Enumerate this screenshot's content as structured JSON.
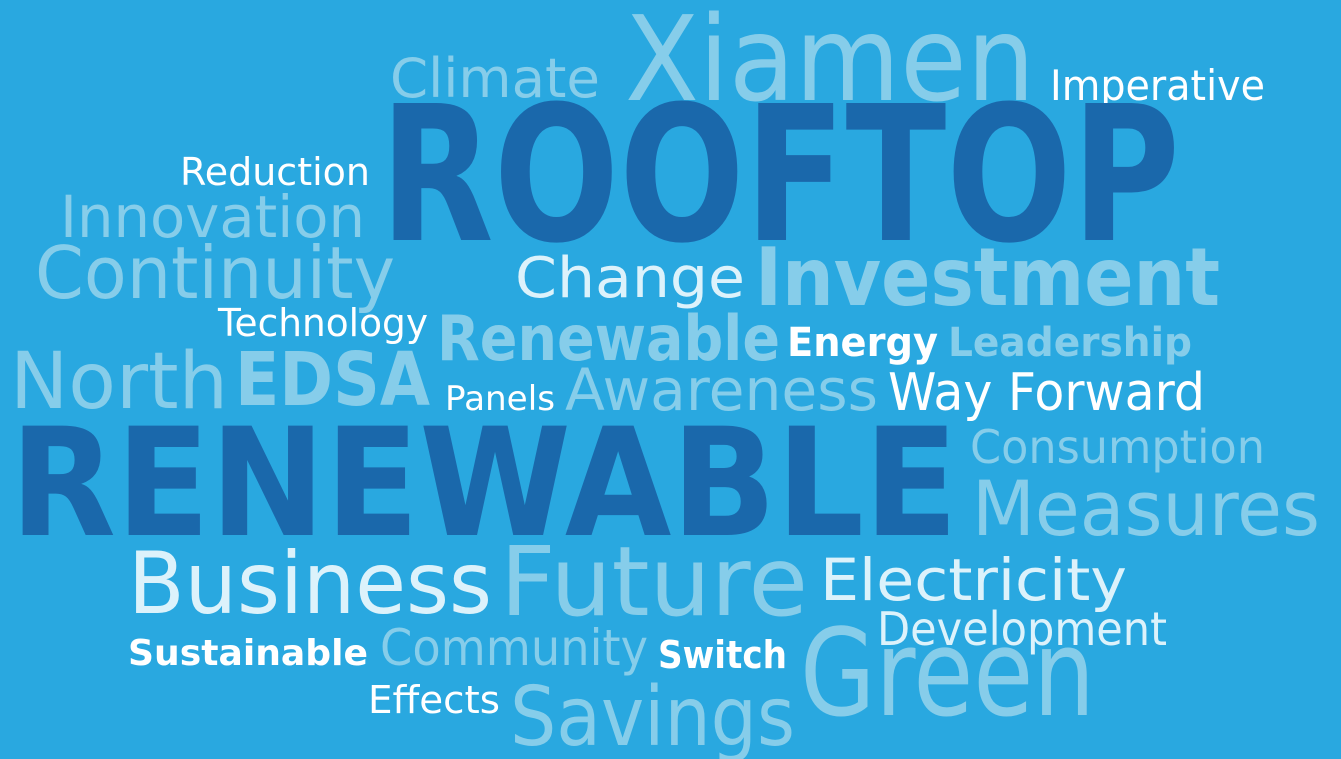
{
  "words": [
    "Climate",
    "Xiamen",
    "Imperative",
    "Reduction",
    "ROOFTOP",
    "Innovation",
    "Continuity",
    "Change",
    "Investment",
    "Technology",
    "Renewable",
    "Energy",
    "Leadership",
    "North",
    "EDSA",
    "Panels",
    "Awareness",
    "Way Forward",
    "RENEWABLE",
    "Consumption",
    "Measures",
    "Business",
    "Future",
    "Electricity",
    "Development",
    "Sustainable",
    "Community",
    "Switch",
    "Green",
    "Effects",
    "Savings"
  ]
}
